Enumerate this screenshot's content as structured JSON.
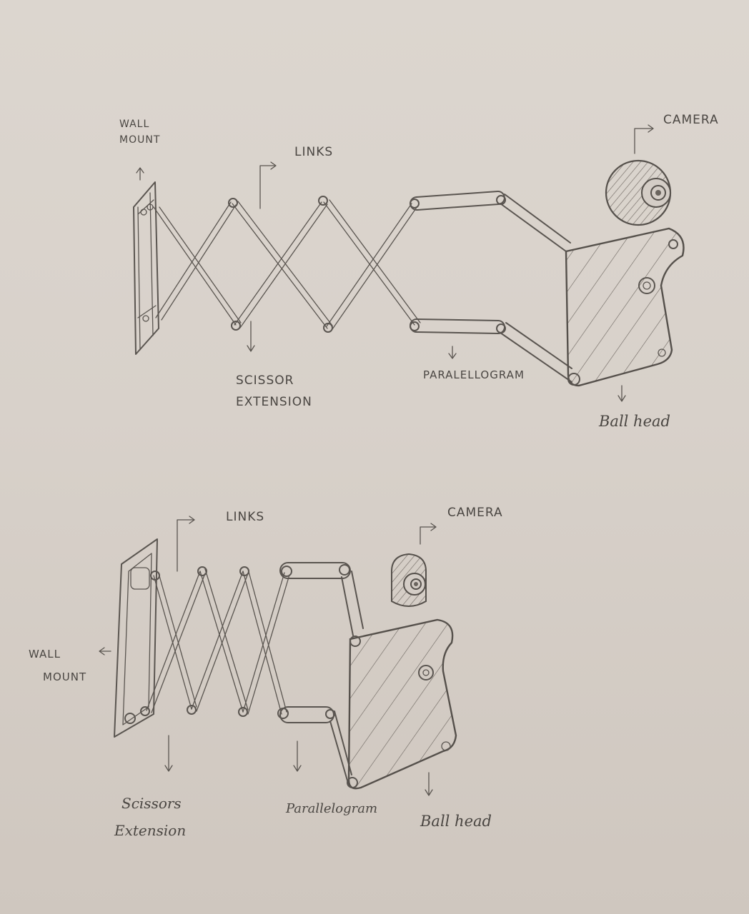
{
  "top": {
    "wall_mount": [
      "WALL",
      "MOUNT"
    ],
    "links": "LINKS",
    "camera": "CAMERA",
    "scissor_extension": [
      "SCISSOR",
      "EXTENSION"
    ],
    "parallelogram": "PARALELLOGRAM",
    "ball_head": "Ball head"
  },
  "bottom": {
    "links": "LINKS",
    "camera": "CAMERA",
    "wall_mount": [
      "WALL",
      "MOUNT"
    ],
    "scissors_extension": [
      "Scissors",
      "Extension"
    ],
    "parallelogram": "Parallelogram",
    "ball_head": "Ball head"
  },
  "colors": {
    "paper": "#d8d1ca",
    "pencil": "#5a5550"
  }
}
